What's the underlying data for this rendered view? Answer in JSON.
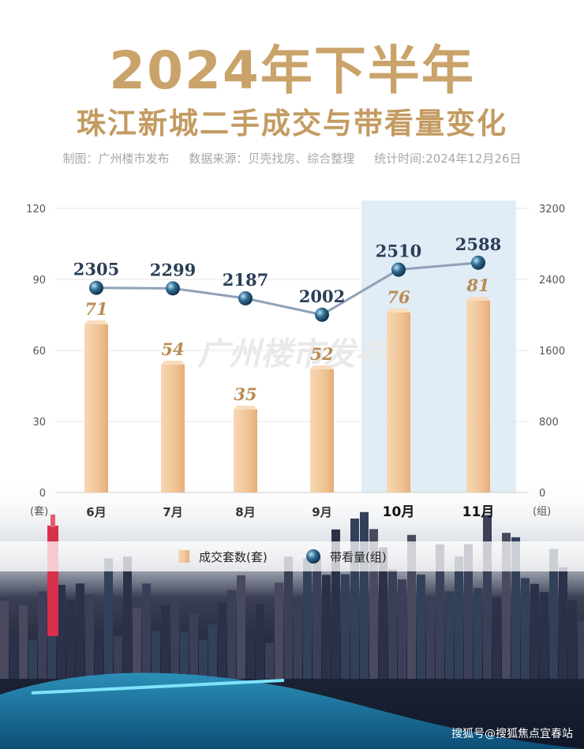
{
  "header": {
    "title": "2024年下半年",
    "subtitle": "珠江新城二手成交与带看量变化",
    "meta_maker": "制图：广州楼市发布",
    "meta_source": "数据来源：贝壳找房、综合整理",
    "meta_time": "统计时间:2024年12月26日"
  },
  "watermark_center": "广州楼市发布",
  "footer_watermark": "搜狐号@搜狐焦点宜春站",
  "colors": {
    "bar": "#f0c495",
    "bar_dark": "#d9a06a",
    "line": "#8fa1b5",
    "marker": "#1f4b6e",
    "highlight": "#dbeaf4",
    "title": "#c9a36a"
  },
  "chart_data": {
    "type": "bar",
    "categories": [
      "6月",
      "7月",
      "8月",
      "9月",
      "10月",
      "11月"
    ],
    "highlight_categories": [
      "10月",
      "11月"
    ],
    "left_axis": {
      "unit": "(套)",
      "ticks": [
        0,
        30,
        60,
        90,
        120
      ],
      "ylim": [
        0,
        120
      ]
    },
    "right_axis": {
      "unit": "(组)",
      "ticks": [
        0,
        800,
        1600,
        2400,
        3200
      ],
      "ylim": [
        0,
        3200
      ]
    },
    "series": [
      {
        "name": "成交套数(套)",
        "type": "bar",
        "axis": "left",
        "values": [
          71,
          54,
          35,
          52,
          76,
          81
        ]
      },
      {
        "name": "带看量(组)",
        "type": "line",
        "axis": "right",
        "values": [
          2305,
          2299,
          2187,
          2002,
          2510,
          2588
        ]
      }
    ],
    "legend_position": "bottom-center",
    "grid": true
  }
}
